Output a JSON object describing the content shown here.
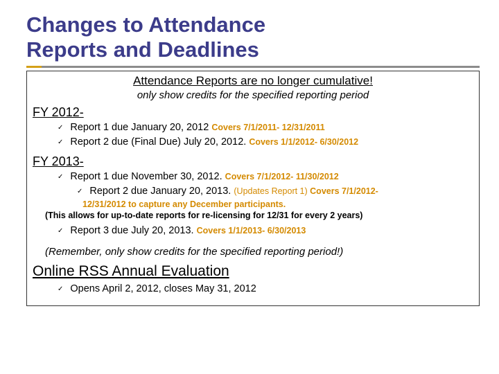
{
  "title_color": "#3c3c8a",
  "title_line1": "Changes to Attendance",
  "title_line2": "Reports and Deadlines",
  "headline": "Attendance Reports are no longer cumulative!",
  "subhead": "only show credits for the specified reporting period",
  "fy2012": {
    "label": "FY 2012-",
    "r1": {
      "text": "Report 1 due January 20, 2012 ",
      "covers": "Covers 7/1/2011- 12/31/2011"
    },
    "r2": {
      "text": "Report 2 due (Final Due) July 20, 2012. ",
      "covers": "Covers 1/1/2012- 6/30/2012"
    }
  },
  "fy2013": {
    "label": "FY 2013-",
    "r1": {
      "text": "Report 1 due  November 30, 2012. ",
      "covers": "Covers 7/1/2012- 11/30/2012"
    },
    "r2": {
      "text": "Report 2 due January 20, 2013. ",
      "update": "(Updates Report 1) ",
      "covers": "Covers 7/1/2012-",
      "detail": "12/31/2012 to capture any December participants."
    },
    "paren": "(This allows for up-to-date reports for re-licensing for 12/31 for every 2 years)",
    "r3": {
      "text": "Report 3 due July 20, 2013. ",
      "covers": "Covers 1/1/2013- 6/30/2013"
    }
  },
  "reminder": "(Remember, only show credits for the specified reporting period!)",
  "online": {
    "label": "Online RSS Annual Evaluation",
    "item": "Opens April 2, 2012, closes May 31, 2012"
  },
  "colors": {
    "gold": "#d48a00",
    "accent_gold": "#d4a018",
    "accent_gray": "#8c8c8c",
    "border": "#333333"
  }
}
